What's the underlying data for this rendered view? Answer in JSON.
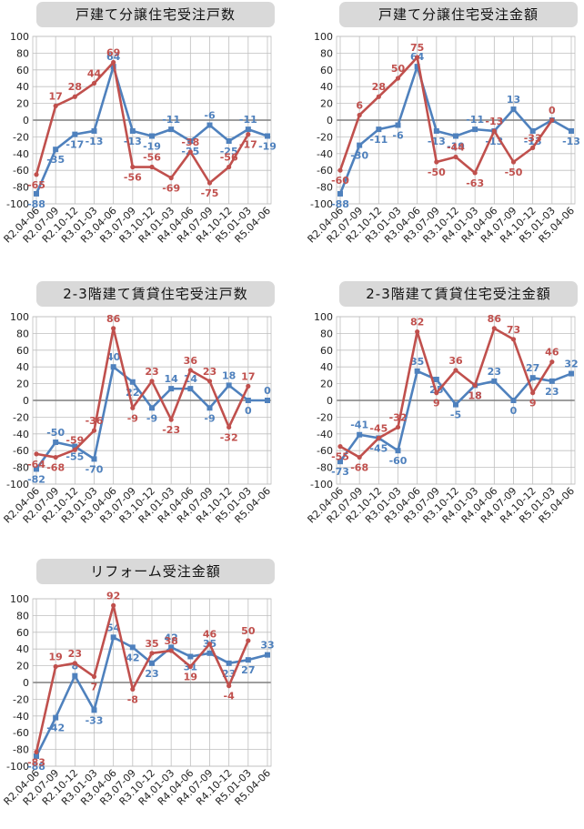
{
  "colors": {
    "blue": "#4f81bd",
    "red": "#c0504d",
    "title_bg": "#d9d9d9",
    "grid": "#bfbfbf"
  },
  "chart_data": [
    {
      "type": "line",
      "title": "戸建て分譲住宅受注戸数",
      "categories": [
        "R2.04-06",
        "R2.07-09",
        "R2.10-12",
        "R3.01-03",
        "R3.04-06",
        "R3.07-09",
        "R3.10-12",
        "R4.01-03",
        "R4.04-06",
        "R4.07-09",
        "R4.10-12",
        "R5.01-03",
        "R5.04-06"
      ],
      "ylim": [
        -100,
        100
      ],
      "yticks": [
        100,
        80,
        60,
        40,
        20,
        0,
        -20,
        -40,
        -60,
        -80,
        -100
      ],
      "grid": true,
      "series": [
        {
          "color": "blue",
          "values": [
            -88,
            -35,
            -17,
            -13,
            64,
            -13,
            -19,
            -11,
            -25,
            -6,
            -25,
            -11,
            -19
          ],
          "labels": [
            "-88",
            "-35",
            "-17",
            "-13",
            "64",
            "-13",
            "-19",
            "-11",
            "-25",
            "-6",
            "-25",
            "-11",
            "-19"
          ]
        },
        {
          "color": "red",
          "values": [
            -65,
            17,
            28,
            44,
            69,
            -56,
            -56,
            -69,
            -38,
            -75,
            -56,
            -17,
            null
          ],
          "labels": [
            "-65",
            "17",
            "28",
            "44",
            "69",
            "-56",
            "-56",
            "-69",
            "-38",
            "-75",
            "-56",
            "-17",
            ""
          ]
        }
      ]
    },
    {
      "type": "line",
      "title": "戸建て分譲住宅受注金額",
      "categories": [
        "R2.04-06",
        "R2.07-09",
        "R2.10-12",
        "R3.01-03",
        "R3.04-06",
        "R3.07-09",
        "R3.10-12",
        "R4.01-03",
        "R4.04-06",
        "R4.07-09",
        "R4.10-12",
        "R5.01-03",
        "R5.04-06"
      ],
      "ylim": [
        -100,
        100
      ],
      "yticks": [
        100,
        80,
        60,
        40,
        20,
        0,
        -20,
        -40,
        -60,
        -80,
        -100
      ],
      "grid": true,
      "series": [
        {
          "color": "blue",
          "values": [
            -88,
            -30,
            -11,
            -6,
            64,
            -13,
            -19,
            -11,
            -13,
            13,
            -13,
            0,
            -13
          ],
          "labels": [
            "-88",
            "-30",
            "-11",
            "-6",
            "64",
            "-13",
            "-19",
            "-11",
            "-13",
            "13",
            "-13",
            "",
            "-13"
          ]
        },
        {
          "color": "red",
          "values": [
            -60,
            6,
            28,
            50,
            75,
            -50,
            -44,
            -63,
            -13,
            -50,
            -33,
            0,
            null
          ],
          "labels": [
            "-60",
            "6",
            "28",
            "50",
            "75",
            "-50",
            "-44",
            "-63",
            "-13",
            "-50",
            "-33",
            "0",
            ""
          ]
        }
      ]
    },
    {
      "type": "line",
      "title": "2-3階建て賃貸住宅受注戸数",
      "categories": [
        "R2.04-06",
        "R2.07-09",
        "R2.10-12",
        "R3.01-03",
        "R3.04-06",
        "R3.07-09",
        "R3.10-12",
        "R4.01-03",
        "R4.04-06",
        "R4.07-09",
        "R4.10-12",
        "R5.01-03",
        "R5.04-06"
      ],
      "ylim": [
        -100,
        100
      ],
      "yticks": [
        100,
        80,
        60,
        40,
        20,
        0,
        -20,
        -40,
        -60,
        -80,
        -100
      ],
      "grid": true,
      "series": [
        {
          "color": "blue",
          "values": [
            -82,
            -50,
            -55,
            -70,
            40,
            22,
            -9,
            14,
            14,
            -9,
            18,
            0,
            0
          ],
          "labels": [
            "-82",
            "-50",
            "-55",
            "-70",
            "40",
            "22",
            "-9",
            "14",
            "14",
            "-9",
            "18",
            "0",
            "0"
          ]
        },
        {
          "color": "red",
          "values": [
            -64,
            -68,
            -59,
            -36,
            86,
            -9,
            23,
            -23,
            36,
            23,
            -32,
            17,
            null
          ],
          "labels": [
            "-64",
            "-68",
            "-59",
            "-36",
            "86",
            "-9",
            "23",
            "-23",
            "36",
            "23",
            "-32",
            "17",
            ""
          ]
        }
      ]
    },
    {
      "type": "line",
      "title": "2-3階建て賃貸住宅受注金額",
      "categories": [
        "R2.04-06",
        "R2.07-09",
        "R2.10-12",
        "R3.01-03",
        "R3.04-06",
        "R3.07-09",
        "R3.10-12",
        "R4.01-03",
        "R4.04-06",
        "R4.07-09",
        "R4.10-12",
        "R5.01-03",
        "R5.04-06"
      ],
      "ylim": [
        -100,
        100
      ],
      "yticks": [
        100,
        80,
        60,
        40,
        20,
        0,
        -20,
        -40,
        -60,
        -80,
        -100
      ],
      "grid": true,
      "series": [
        {
          "color": "blue",
          "values": [
            -73,
            -41,
            -45,
            -60,
            35,
            25,
            -5,
            18,
            23,
            0,
            27,
            23,
            32
          ],
          "labels": [
            "-73",
            "-41",
            "-45",
            "-60",
            "35",
            "25",
            "-5",
            "18",
            "23",
            "0",
            "27",
            "23",
            "32"
          ]
        },
        {
          "color": "red",
          "values": [
            -55,
            -68,
            -45,
            -32,
            82,
            9,
            36,
            18,
            86,
            73,
            9,
            46,
            null
          ],
          "labels": [
            "-55",
            "-68",
            "-45",
            "-32",
            "82",
            "9",
            "36",
            "18",
            "86",
            "73",
            "9",
            "46",
            ""
          ]
        }
      ]
    },
    {
      "type": "line",
      "title": "リフォーム受注金額",
      "categories": [
        "R2.04-06",
        "R2.07-09",
        "R2.10-12",
        "R3.01-03",
        "R3.04-06",
        "R3.07-09",
        "R3.10-12",
        "R4.01-03",
        "R4.04-06",
        "R4.07-09",
        "R4.10-12",
        "R5.01-03",
        "R5.04-06"
      ],
      "ylim": [
        -100,
        100
      ],
      "yticks": [
        100,
        80,
        60,
        40,
        20,
        0,
        -20,
        -40,
        -60,
        -80,
        -100
      ],
      "grid": true,
      "series": [
        {
          "color": "blue",
          "values": [
            -88,
            -42,
            8,
            -33,
            54,
            42,
            23,
            42,
            31,
            35,
            23,
            27,
            33
          ],
          "labels": [
            "-88",
            "-42",
            "8",
            "-33",
            "54",
            "42",
            "23",
            "42",
            "31",
            "35",
            "23",
            "27",
            "33"
          ]
        },
        {
          "color": "red",
          "values": [
            -83,
            19,
            23,
            7,
            92,
            -8,
            35,
            38,
            19,
            46,
            -4,
            50,
            null
          ],
          "labels": [
            "-83",
            "19",
            "23",
            "7",
            "92",
            "-8",
            "35",
            "38",
            "19",
            "46",
            "-4",
            "50",
            ""
          ]
        }
      ]
    }
  ]
}
